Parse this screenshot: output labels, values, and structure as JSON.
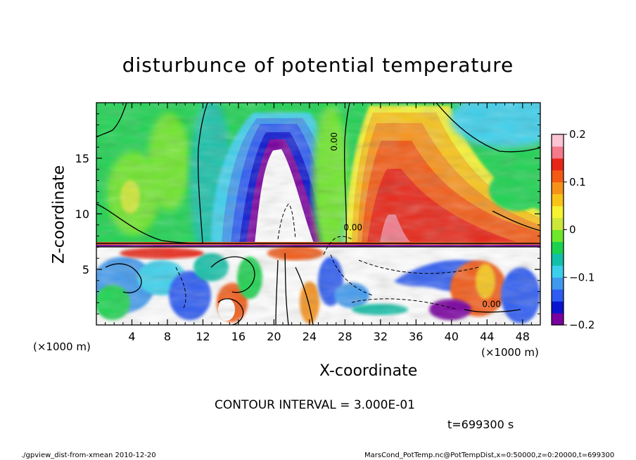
{
  "chart_data": {
    "type": "heatmap",
    "title": "disturbunce of potential temperature",
    "xlabel": "X-coordinate",
    "ylabel": "Z-coordinate",
    "x_unit_left": "(×1000 m)",
    "x_unit_right": "(×1000 m)",
    "xlim": [
      0,
      50
    ],
    "ylim": [
      0,
      20
    ],
    "x_ticks": [
      "4",
      "8",
      "12",
      "16",
      "20",
      "24",
      "28",
      "32",
      "36",
      "40",
      "44",
      "48"
    ],
    "x_tick_values": [
      4,
      8,
      12,
      16,
      20,
      24,
      28,
      32,
      36,
      40,
      44,
      48
    ],
    "y_ticks": [
      "5",
      "10",
      "15"
    ],
    "y_tick_values": [
      5,
      10,
      15
    ],
    "colorbar": {
      "range": [
        -0.2,
        0.2
      ],
      "tick_labels": [
        "0.2",
        "0.1",
        "0",
        "−0.1",
        "−0.2"
      ],
      "tick_values": [
        0.2,
        0.1,
        0,
        -0.1,
        -0.2
      ],
      "colors": [
        "#7a00a0",
        "#0a14cf",
        "#2d5cf2",
        "#3f99ee",
        "#3ad0ec",
        "#12c0a8",
        "#1bd24f",
        "#6ee62a",
        "#cde63a",
        "#f5f232",
        "#f8c419",
        "#f6921a",
        "#f35a14",
        "#e82618",
        "#f27a8a",
        "#fbc4d2"
      ]
    },
    "contour_labels": [
      "0.00",
      "0.00",
      "0.00"
    ],
    "features": [
      {
        "name": "cold-anomaly-column",
        "x_center": 21,
        "z_top": 17,
        "value": "below -0.2"
      },
      {
        "name": "warm-anomaly-column",
        "x_center": 34,
        "z_top": 17,
        "value": "up to 0.2"
      }
    ],
    "contour_interval_text": "CONTOUR INTERVAL = 3.000E-01",
    "time_text": "t=699300 s"
  },
  "footer": {
    "left": "./gpview_dist-from-xmean 2010-12-20",
    "right": "MarsCond_PotTemp.nc@PotTempDist,x=0:50000,z=0:20000,t=699300"
  }
}
